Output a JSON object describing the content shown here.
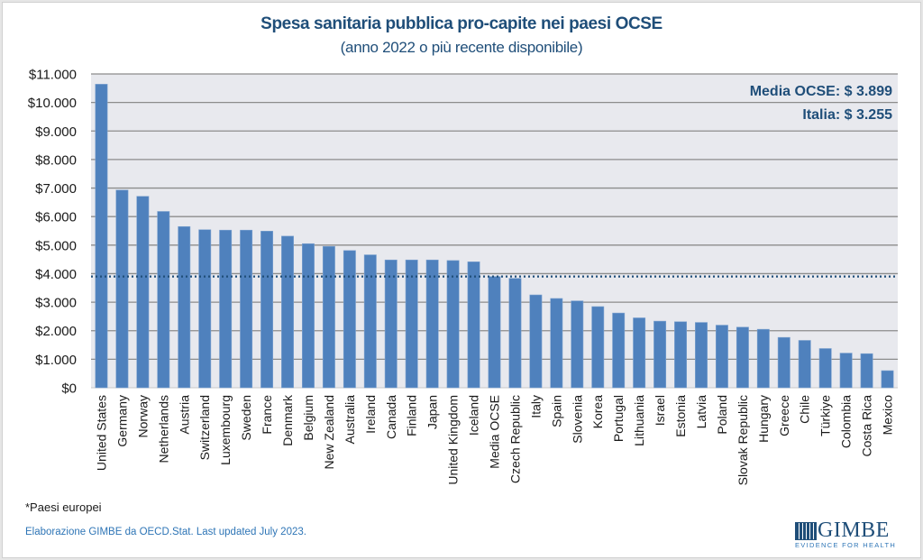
{
  "chart_data": {
    "type": "bar",
    "title": "Spesa sanitaria pubblica pro-capite nei paesi OCSE",
    "subtitle": "(anno 2022 o più recente disponibile)",
    "xlabel": "",
    "ylabel": "",
    "ylim": [
      0,
      11000
    ],
    "yticks": [
      0,
      1000,
      2000,
      3000,
      4000,
      5000,
      6000,
      7000,
      8000,
      9000,
      10000,
      11000
    ],
    "ytick_labels": [
      "$0",
      "$1.000",
      "$2.000",
      "$3.000",
      "$4.000",
      "$5.000",
      "$6.000",
      "$7.000",
      "$8.000",
      "$9.000",
      "$10.000",
      "$11.000"
    ],
    "grid": true,
    "categories": [
      "United States",
      "Germany",
      "Norway",
      "Netherlands",
      "Austria",
      "Switzerland",
      "Luxembourg",
      "Sweden",
      "France",
      "Denmark",
      "Belgium",
      "New Zealand",
      "Australia",
      "Ireland",
      "Canada",
      "Finland",
      "Japan",
      "United Kingdom",
      "Iceland",
      "Media OCSE",
      "Czech Republic",
      "Italy",
      "Spain",
      "Slovenia",
      "Korea",
      "Portugal",
      "Lithuania",
      "Israel",
      "Estonia",
      "Latvia",
      "Poland",
      "Slovak Republic",
      "Hungary",
      "Greece",
      "Chile",
      "Türkiye",
      "Colombia",
      "Costa Rica",
      "Mexico"
    ],
    "values": [
      10640,
      6930,
      6710,
      6180,
      5650,
      5540,
      5525,
      5525,
      5490,
      5315,
      5050,
      4955,
      4810,
      4660,
      4480,
      4480,
      4480,
      4460,
      4415,
      3899,
      3835,
      3255,
      3130,
      3045,
      2845,
      2620,
      2450,
      2335,
      2315,
      2290,
      2195,
      2125,
      2050,
      1765,
      1660,
      1375,
      1215,
      1195,
      600
    ],
    "reference_line": {
      "label": "Media OCSE",
      "value": 3899,
      "style": "dotted"
    },
    "annotations": [
      "Media OCSE: $ 3.899",
      "Italia: $ 3.255"
    ],
    "colors": {
      "bar": "#4f81bd",
      "plot_bg": "#e8e9ee",
      "grid": "#8c8c8c",
      "reference_line": "#1f4e79",
      "title": "#1f4e79"
    }
  },
  "footer": {
    "note": "*Paesi europei",
    "source": "Elaborazione GIMBE da OECD.Stat. Last updated July 2023.",
    "logo_name": "GIMBE",
    "logo_tagline": "EVIDENCE FOR HEALTH"
  }
}
